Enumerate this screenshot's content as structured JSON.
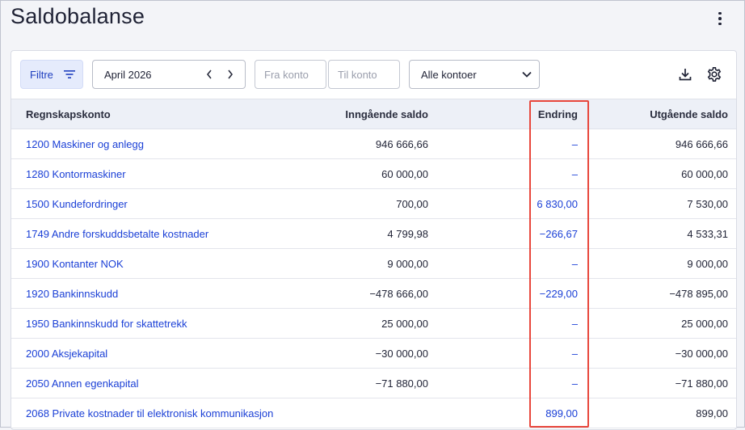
{
  "header": {
    "title": "Saldobalanse"
  },
  "toolbar": {
    "filter_label": "Filtre",
    "period_label": "April 2026",
    "from_account_placeholder": "Fra konto",
    "to_account_placeholder": "Til konto",
    "accounts_select_value": "Alle kontoer"
  },
  "table": {
    "columns": {
      "account": "Regnskapskonto",
      "opening": "Inngående saldo",
      "change": "Endring",
      "closing": "Utgående saldo"
    },
    "rows": [
      {
        "account": "1200 Maskiner og anlegg",
        "opening": "946 666,66",
        "change": "–",
        "closing": "946 666,66"
      },
      {
        "account": "1280 Kontormaskiner",
        "opening": "60 000,00",
        "change": "–",
        "closing": "60 000,00"
      },
      {
        "account": "1500 Kundefordringer",
        "opening": "700,00",
        "change": "6 830,00",
        "closing": "7 530,00"
      },
      {
        "account": "1749 Andre forskuddsbetalte kostnader",
        "opening": "4 799,98",
        "change": "−266,67",
        "closing": "4 533,31"
      },
      {
        "account": "1900 Kontanter NOK",
        "opening": "9 000,00",
        "change": "–",
        "closing": "9 000,00"
      },
      {
        "account": "1920 Bankinnskudd",
        "opening": "−478 666,00",
        "change": "−229,00",
        "closing": "−478 895,00"
      },
      {
        "account": "1950 Bankinnskudd for skattetrekk",
        "opening": "25 000,00",
        "change": "–",
        "closing": "25 000,00"
      },
      {
        "account": "2000 Aksjekapital",
        "opening": "−30 000,00",
        "change": "–",
        "closing": "−30 000,00"
      },
      {
        "account": "2050 Annen egenkapital",
        "opening": "−71 880,00",
        "change": "–",
        "closing": "−71 880,00"
      },
      {
        "account": "2068 Private kostnader til elektronisk kommunikasjon",
        "opening": "",
        "change": "899,00",
        "closing": "899,00"
      }
    ]
  },
  "colors": {
    "link": "#1a3fd6",
    "highlight": "#e8473c",
    "filter_bg": "#e5ebfc"
  }
}
